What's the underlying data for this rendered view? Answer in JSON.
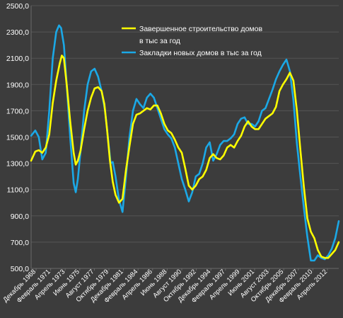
{
  "chart_data": {
    "type": "line",
    "title": "",
    "xlabel": "",
    "ylabel": "",
    "ylim": [
      500,
      2500
    ],
    "yticks": [
      "500,0",
      "700,0",
      "900,0",
      "1100,0",
      "1300,0",
      "1500,0",
      "1700,0",
      "1900,0",
      "2100,0",
      "2300,0",
      "2500,0"
    ],
    "xticks": [
      "Декабрь 1968",
      "Февраль 1971",
      "Апрель 1973",
      "Июнь 1975",
      "Август 1977",
      "Октябрь 1979",
      "Декабрь 1981",
      "Февраль 1984",
      "Апрель 1986",
      "Июнь 1988",
      "Август 1990",
      "Октябрь 1992",
      "Декабрь 1994",
      "Февраль 1997",
      "Апрель 1999",
      "Июнь 2001",
      "Август 2003",
      "Октябрь 2005",
      "Декабрь 2007",
      "Февраль 2010",
      "Апрель 2012"
    ],
    "grid": true,
    "legend_position": "top-center",
    "background": "#3c3c3c",
    "series": [
      {
        "name": "Завершенное строительство домов в тыс за год",
        "name_lines": [
          "Завершенное строительство домов",
          "в тыс за год"
        ],
        "color": "#ffff00",
        "x": [
          1968.9,
          1969.5,
          1970.0,
          1970.5,
          1971.0,
          1971.5,
          1972.0,
          1972.5,
          1973.0,
          1973.3,
          1973.6,
          1974.0,
          1974.5,
          1975.0,
          1975.3,
          1975.6,
          1976.0,
          1976.5,
          1977.0,
          1977.5,
          1978.0,
          1978.5,
          1979.0,
          1979.4,
          1979.8,
          1980.2,
          1980.6,
          1981.0,
          1981.5,
          1982.0,
          1982.5,
          1983.0,
          1983.5,
          1984.0,
          1984.5,
          1985.0,
          1985.5,
          1986.0,
          1986.5,
          1987.0,
          1987.5,
          1988.0,
          1988.5,
          1989.0,
          1989.5,
          1990.0,
          1990.5,
          1991.0,
          1991.5,
          1992.0,
          1992.5,
          1993.0,
          1993.5,
          1994.0,
          1994.5,
          1995.0,
          1995.5,
          1996.0,
          1996.5,
          1997.0,
          1997.5,
          1998.0,
          1998.5,
          1999.0,
          1999.5,
          2000.0,
          2000.5,
          2001.0,
          2001.5,
          2002.0,
          2002.5,
          2003.0,
          2003.5,
          2004.0,
          2004.5,
          2005.0,
          2005.5,
          2006.0,
          2006.5,
          2007.0,
          2007.5,
          2008.0,
          2008.5,
          2009.0,
          2009.5,
          2010.0,
          2010.5,
          2011.0,
          2011.5,
          2012.0,
          2012.5,
          2013.0
        ],
        "values": [
          1320,
          1390,
          1400,
          1380,
          1420,
          1520,
          1760,
          1930,
          2060,
          2120,
          2100,
          1900,
          1620,
          1380,
          1290,
          1320,
          1400,
          1560,
          1700,
          1800,
          1870,
          1880,
          1850,
          1750,
          1550,
          1320,
          1160,
          1060,
          1000,
          1030,
          1250,
          1430,
          1600,
          1670,
          1680,
          1700,
          1720,
          1710,
          1740,
          1740,
          1680,
          1600,
          1550,
          1530,
          1480,
          1420,
          1380,
          1260,
          1130,
          1100,
          1130,
          1180,
          1200,
          1250,
          1340,
          1370,
          1340,
          1330,
          1360,
          1420,
          1440,
          1420,
          1470,
          1510,
          1580,
          1620,
          1580,
          1560,
          1560,
          1600,
          1640,
          1660,
          1680,
          1730,
          1850,
          1900,
          1940,
          1990,
          1930,
          1700,
          1400,
          1120,
          880,
          780,
          730,
          640,
          590,
          580,
          580,
          610,
          640,
          700
        ]
      },
      {
        "name": "Закладки новых домов в тыс за год",
        "name_lines": [
          "Закладки новых домов в тыс за год"
        ],
        "color": "#1ba8e6",
        "x": [
          1968.9,
          1969.5,
          1970.0,
          1970.5,
          1971.0,
          1971.5,
          1972.0,
          1972.5,
          1972.9,
          1973.2,
          1973.6,
          1974.0,
          1974.5,
          1975.0,
          1975.3,
          1975.6,
          1976.0,
          1976.5,
          1977.0,
          1977.5,
          1978.0,
          1978.5,
          1979.0,
          1979.5,
          1980.0,
          1980.3,
          1980.6,
          1981.0,
          1981.5,
          1982.0,
          1982.5,
          1983.0,
          1983.5,
          1984.0,
          1984.5,
          1985.0,
          1985.5,
          1986.0,
          1986.5,
          1987.0,
          1987.5,
          1988.0,
          1988.5,
          1989.0,
          1989.5,
          1990.0,
          1990.5,
          1991.0,
          1991.5,
          1992.0,
          1992.5,
          1993.0,
          1993.5,
          1994.0,
          1994.5,
          1995.0,
          1995.5,
          1996.0,
          1996.5,
          1997.0,
          1997.5,
          1998.0,
          1998.5,
          1999.0,
          1999.5,
          2000.0,
          2000.5,
          2001.0,
          2001.5,
          2002.0,
          2002.5,
          2003.0,
          2003.5,
          2004.0,
          2004.5,
          2005.0,
          2005.5,
          2006.0,
          2006.5,
          2007.0,
          2007.5,
          2008.0,
          2008.5,
          2009.0,
          2009.5,
          2010.0,
          2010.5,
          2011.0,
          2011.5,
          2012.0,
          2012.5,
          2013.0
        ],
        "values": [
          1510,
          1550,
          1500,
          1330,
          1380,
          1700,
          2100,
          2300,
          2350,
          2330,
          2200,
          1900,
          1500,
          1150,
          1080,
          1180,
          1400,
          1700,
          1900,
          2000,
          2020,
          1960,
          1850,
          1700,
          1450,
          1300,
          1310,
          1200,
          1020,
          930,
          1200,
          1500,
          1700,
          1790,
          1750,
          1720,
          1800,
          1830,
          1800,
          1720,
          1640,
          1560,
          1520,
          1490,
          1420,
          1300,
          1180,
          1100,
          1010,
          1080,
          1200,
          1220,
          1300,
          1420,
          1460,
          1320,
          1370,
          1440,
          1470,
          1470,
          1490,
          1520,
          1600,
          1640,
          1650,
          1600,
          1600,
          1580,
          1620,
          1700,
          1720,
          1790,
          1860,
          1940,
          2000,
          2050,
          2090,
          2000,
          1780,
          1450,
          1200,
          960,
          740,
          560,
          560,
          600,
          580,
          570,
          600,
          650,
          730,
          860
        ]
      }
    ]
  }
}
